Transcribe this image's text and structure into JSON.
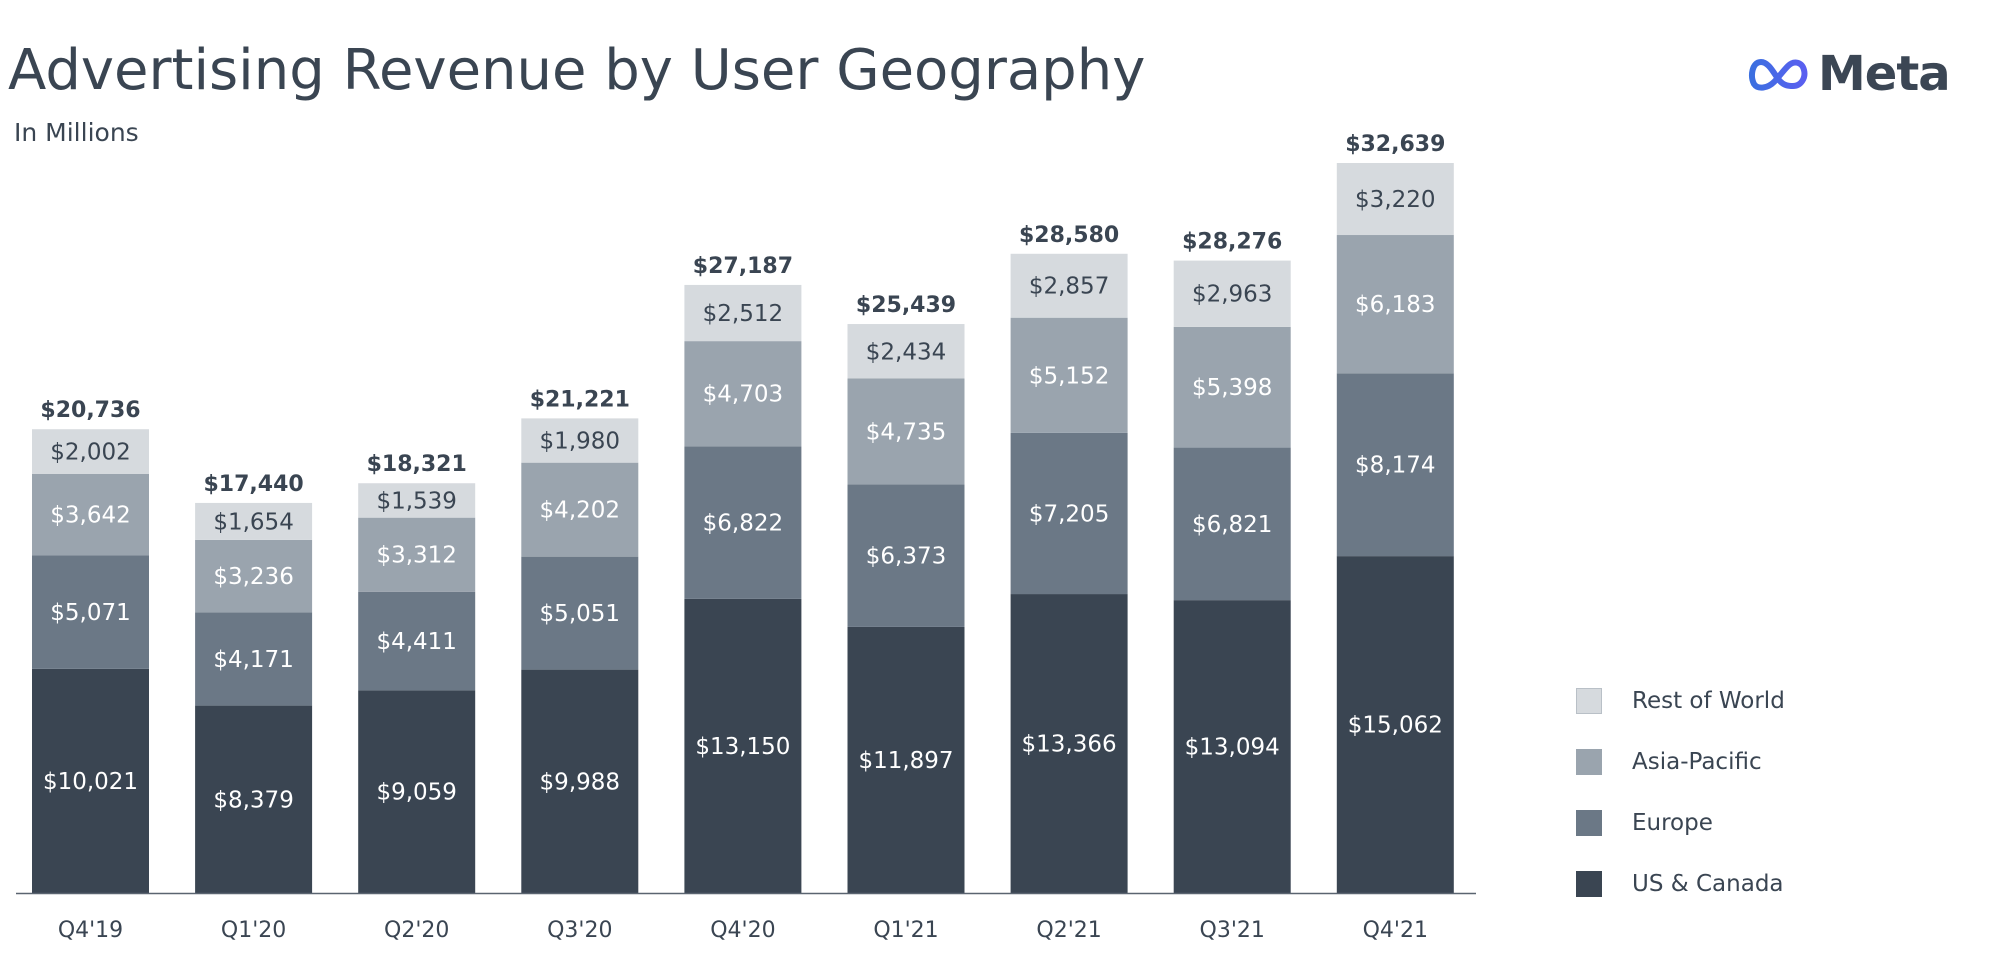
{
  "header": {
    "title": "Advertising Revenue by User Geography",
    "subtitle": "In Millions",
    "logo_text": "Meta"
  },
  "colors": {
    "us_canada": "#3a4552",
    "europe": "#6b7886",
    "asia_pacific": "#9aa4ae",
    "rest_of_world": "#d6dade",
    "text_dark": "#3a4552",
    "axis": "#5a6470",
    "logo_blue": "#4a6ee0"
  },
  "chart_data": {
    "type": "bar",
    "stacked": true,
    "title": "Advertising Revenue by User Geography",
    "subtitle": "In Millions",
    "categories": [
      "Q4'19",
      "Q1'20",
      "Q2'20",
      "Q3'20",
      "Q4'20",
      "Q1'21",
      "Q2'21",
      "Q3'21",
      "Q4'21"
    ],
    "series": [
      {
        "name": "US & Canada",
        "color": "#3a4552",
        "label_color": "#ffffff",
        "values": [
          10021,
          8379,
          9059,
          9988,
          13150,
          11897,
          13366,
          13094,
          15062
        ],
        "labels": [
          "$10,021",
          "$8,379",
          "$9,059",
          "$9,988",
          "$13,150",
          "$11,897",
          "$13,366",
          "$13,094",
          "$15,062"
        ]
      },
      {
        "name": "Europe",
        "color": "#6b7886",
        "label_color": "#ffffff",
        "values": [
          5071,
          4171,
          4411,
          5051,
          6822,
          6373,
          7205,
          6821,
          8174
        ],
        "labels": [
          "$5,071",
          "$4,171",
          "$4,411",
          "$5,051",
          "$6,822",
          "$6,373",
          "$7,205",
          "$6,821",
          "$8,174"
        ]
      },
      {
        "name": "Asia-Pacific",
        "color": "#9aa4ae",
        "label_color": "#ffffff",
        "values": [
          3642,
          3236,
          3312,
          4202,
          4703,
          4735,
          5152,
          5398,
          6183
        ],
        "labels": [
          "$3,642",
          "$3,236",
          "$3,312",
          "$4,202",
          "$4,703",
          "$4,735",
          "$5,152",
          "$5,398",
          "$6,183"
        ]
      },
      {
        "name": "Rest of World",
        "color": "#d6dade",
        "label_color": "#3a4552",
        "values": [
          2002,
          1654,
          1539,
          1980,
          2512,
          2434,
          2857,
          2963,
          3220
        ],
        "labels": [
          "$2,002",
          "$1,654",
          "$1,539",
          "$1,980",
          "$2,512",
          "$2,434",
          "$2,857",
          "$2,963",
          "$3,220"
        ]
      }
    ],
    "totals": [
      20736,
      17440,
      18321,
      21221,
      27187,
      25439,
      28580,
      28276,
      32639
    ],
    "total_labels": [
      "$20,736",
      "$17,440",
      "$18,321",
      "$21,221",
      "$27,187",
      "$25,439",
      "$28,580",
      "$28,276",
      "$32,639"
    ],
    "ylim": [
      0,
      32639
    ],
    "grid": false,
    "legend": {
      "position": "bottom-right",
      "order": [
        "Rest of World",
        "Asia-Pacific",
        "Europe",
        "US & Canada"
      ]
    }
  }
}
